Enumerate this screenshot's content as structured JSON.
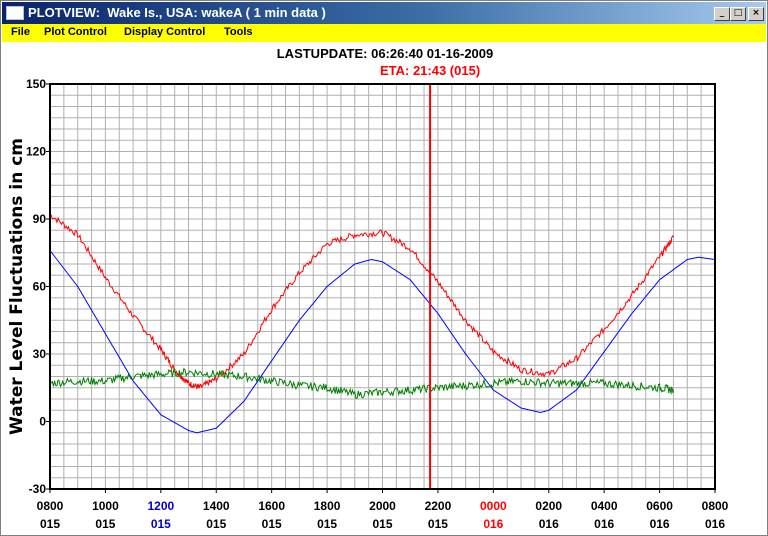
{
  "window": {
    "title": "PLOTVIEW:  Wake Is., USA: wakeA ( 1 min data )",
    "min_glyph": "_",
    "max_glyph": "□",
    "close_glyph": "×"
  },
  "menu": {
    "items": [
      "File",
      "Plot Control",
      "Display Control",
      "Tools"
    ]
  },
  "header": {
    "last_update": "LASTUPDATE: 06:26:40  01-16-2009",
    "eta": "ETA: 21:43 (015)"
  },
  "colors": {
    "titlebar": "#0a246a",
    "menubar": "#ffff00",
    "observed": "#ff0000",
    "predicted": "#0000ff",
    "residual": "#008000",
    "eta_line": "#ff0000",
    "tick_blue": "#0000cc",
    "tick_red": "#ff0000"
  },
  "chart_data": {
    "type": "line",
    "ylabel": "Water Level Fluctuations in cm",
    "ylim": [
      -30,
      150
    ],
    "y_ticks": [
      -30,
      0,
      30,
      60,
      90,
      120,
      150
    ],
    "x_range_hours": [
      8,
      32
    ],
    "x_ticks": [
      {
        "time": "0800",
        "day": "015",
        "color": "black"
      },
      {
        "time": "1000",
        "day": "015",
        "color": "black"
      },
      {
        "time": "1200",
        "day": "015",
        "color": "blue"
      },
      {
        "time": "1400",
        "day": "015",
        "color": "black"
      },
      {
        "time": "1600",
        "day": "015",
        "color": "black"
      },
      {
        "time": "1800",
        "day": "015",
        "color": "black"
      },
      {
        "time": "2000",
        "day": "015",
        "color": "black"
      },
      {
        "time": "2200",
        "day": "015",
        "color": "black"
      },
      {
        "time": "0000",
        "day": "016",
        "color": "red"
      },
      {
        "time": "0200",
        "day": "016",
        "color": "black"
      },
      {
        "time": "0400",
        "day": "016",
        "color": "black"
      },
      {
        "time": "0600",
        "day": "016",
        "color": "black"
      },
      {
        "time": "0800",
        "day": "016",
        "color": "black"
      }
    ],
    "grid": true,
    "eta_marker": {
      "time": "21:43",
      "day": "015"
    },
    "series": [
      {
        "key": "observed",
        "x": [
          8.0,
          9.0,
          10.0,
          11.0,
          12.0,
          12.5,
          13.0,
          13.4,
          14.0,
          15.0,
          16.0,
          17.0,
          18.0,
          19.0,
          20.0,
          21.0,
          22.0,
          23.0,
          24.0,
          25.0,
          26.0,
          27.0,
          28.0,
          29.0,
          30.0,
          30.5
        ],
        "y": [
          92,
          83,
          64,
          47,
          32,
          23,
          17,
          15,
          19,
          30,
          50,
          66,
          79,
          83,
          84,
          77,
          62,
          45,
          31,
          23,
          21,
          28,
          41,
          56,
          73,
          82
        ]
      },
      {
        "key": "predicted",
        "x": [
          8.0,
          9.0,
          10.0,
          11.0,
          12.0,
          13.0,
          13.3,
          14.0,
          15.0,
          16.0,
          17.0,
          18.0,
          19.0,
          19.6,
          20.0,
          21.0,
          22.0,
          23.0,
          24.0,
          25.0,
          25.7,
          26.0,
          27.0,
          28.0,
          29.0,
          30.0,
          31.0,
          31.4,
          32.0
        ],
        "y": [
          76,
          60,
          39,
          18,
          3,
          -4,
          -5,
          -3,
          9,
          27,
          45,
          60,
          70,
          72,
          71,
          63,
          48,
          30,
          14,
          6,
          4,
          5,
          14,
          31,
          48,
          63,
          72,
          73,
          72
        ]
      },
      {
        "key": "residual",
        "x": [
          8.0,
          9.0,
          10.0,
          11.0,
          12.0,
          13.0,
          14.0,
          15.0,
          16.0,
          17.0,
          18.0,
          19.0,
          20.0,
          21.0,
          22.0,
          23.0,
          24.0,
          25.0,
          26.0,
          27.0,
          28.0,
          29.0,
          30.0,
          30.5
        ],
        "y": [
          17,
          18,
          18,
          20,
          21,
          22,
          21,
          20,
          18,
          16,
          15,
          12,
          13,
          14,
          15,
          16,
          17,
          18,
          17,
          17,
          17,
          16,
          15,
          14
        ]
      }
    ]
  }
}
